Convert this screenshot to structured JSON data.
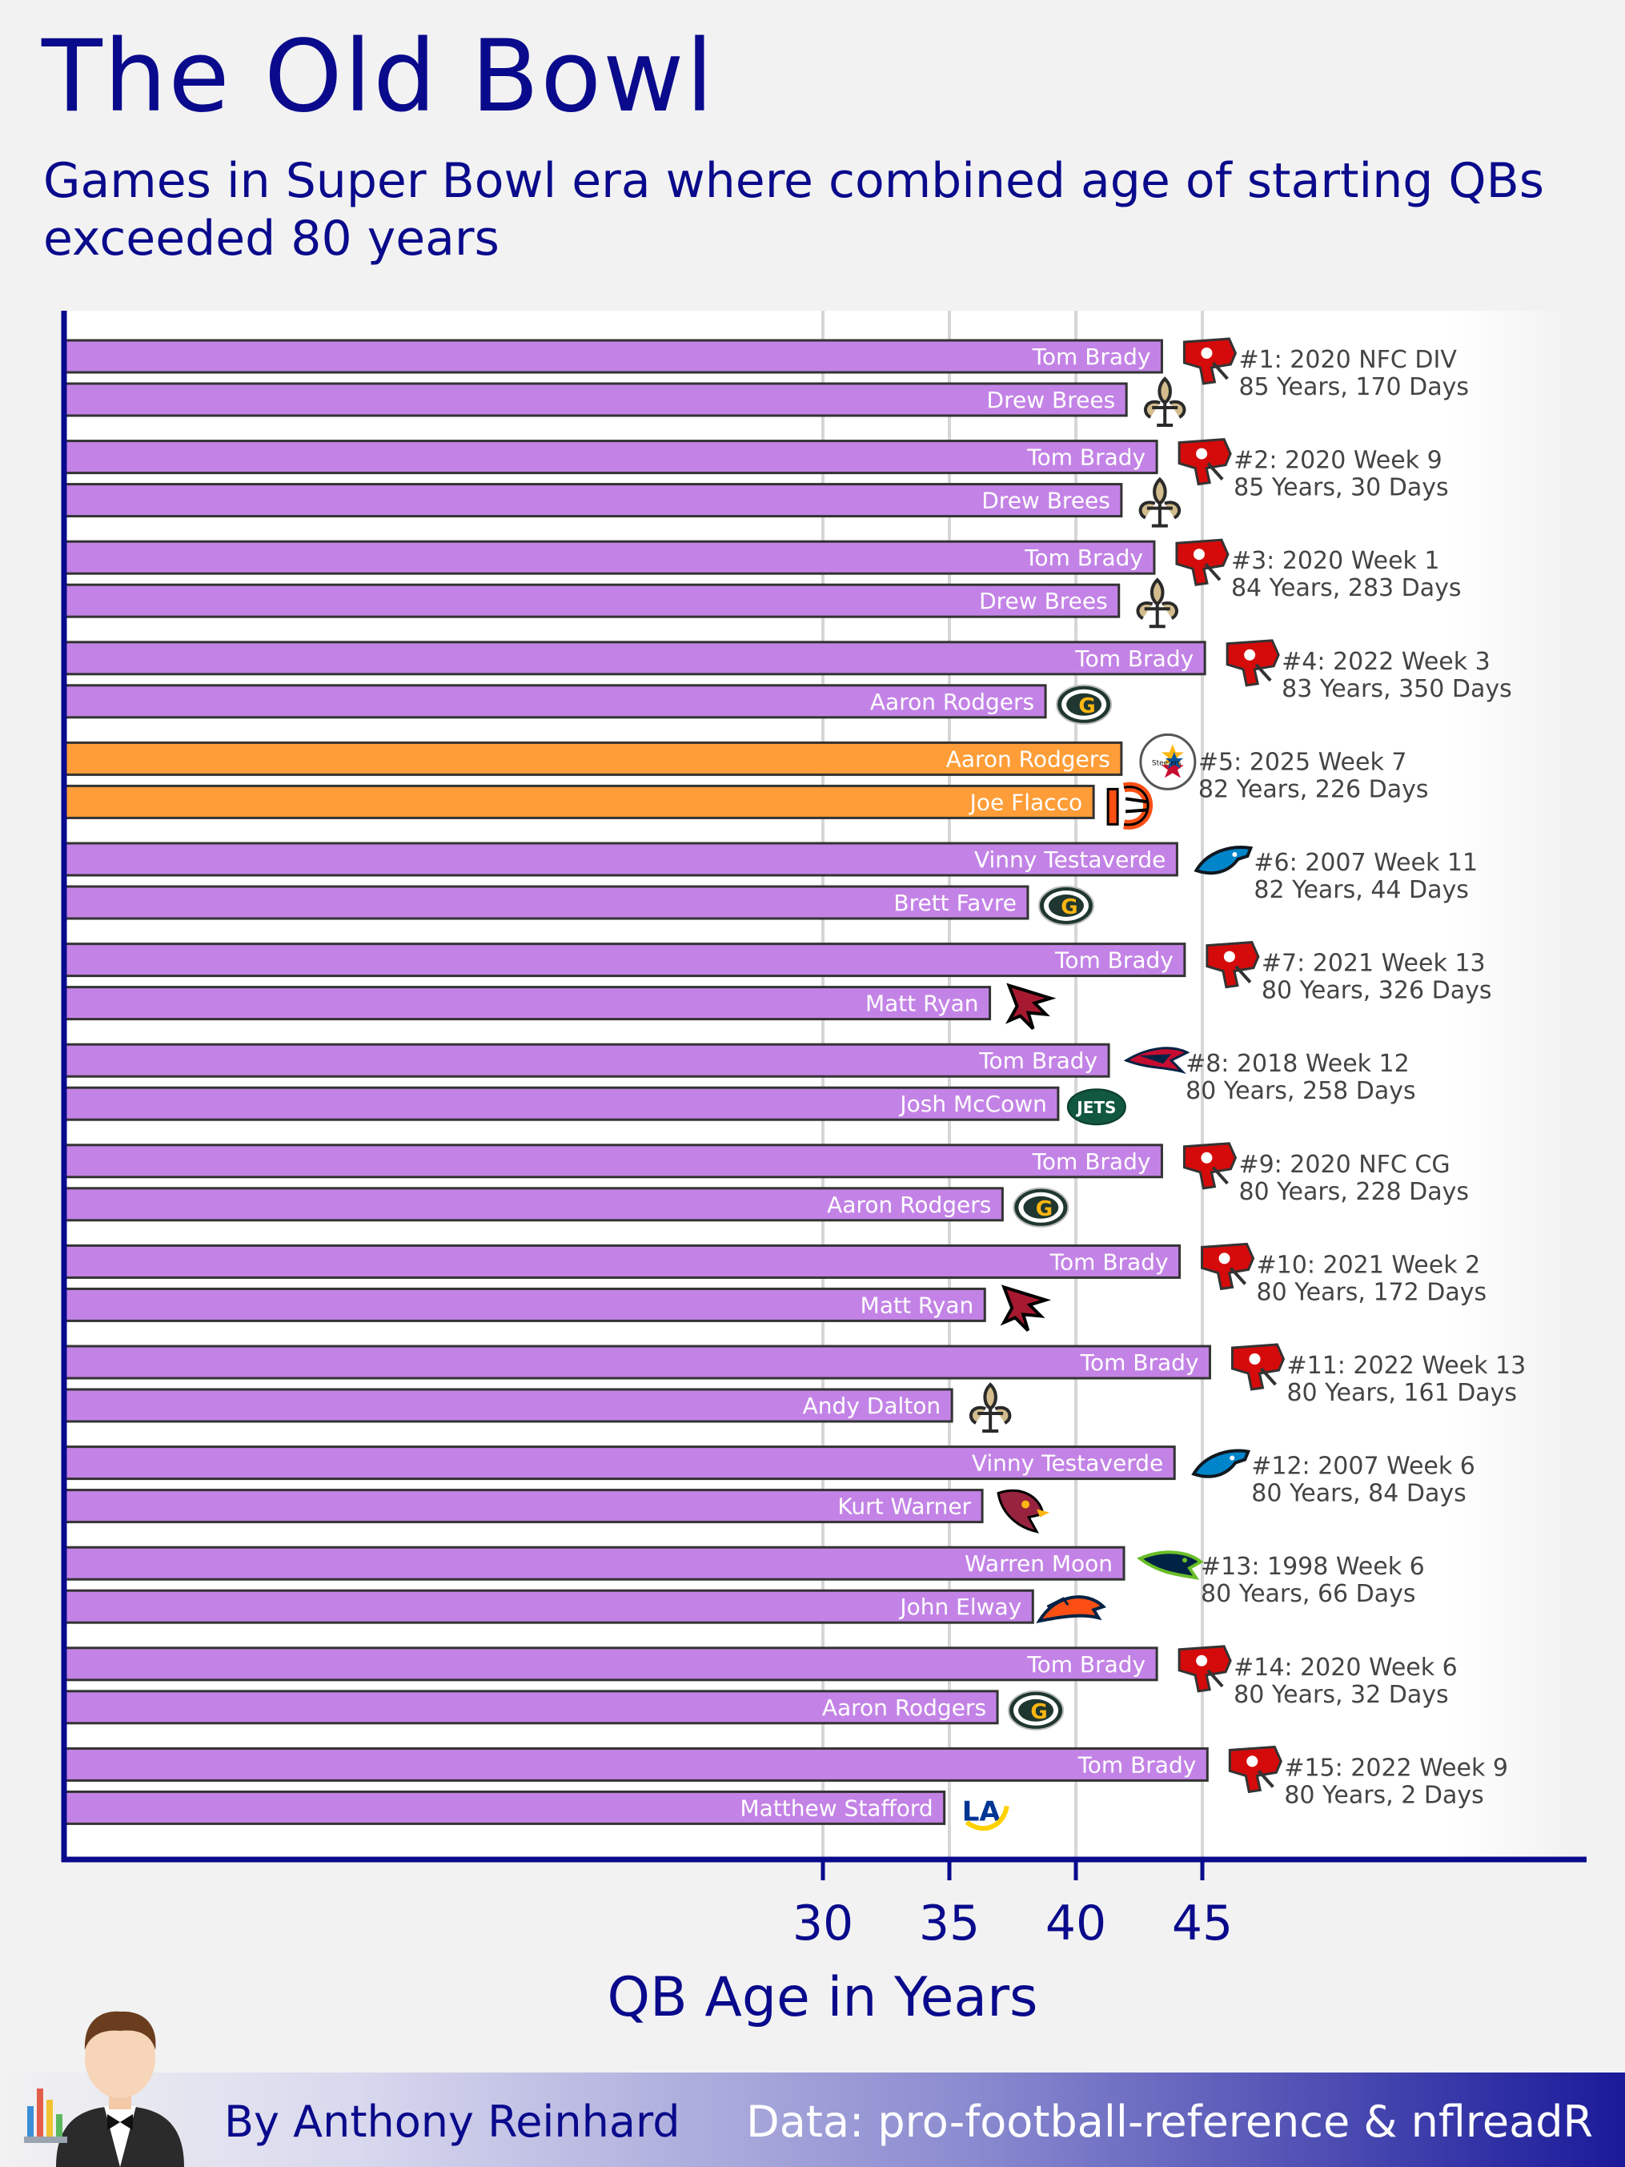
{
  "header": {
    "title": "The Old Bowl",
    "subtitle": "Games in Super Bowl era where combined age of starting QBs exceeded 80 years"
  },
  "footer": {
    "byline": "By Anthony Reinhard",
    "source": "Data: pro-football-reference & nflreadR"
  },
  "colors": {
    "title": "#0a0a8c",
    "bar_default": "#c383e6",
    "bar_highlight": "#ff9d38",
    "bar_border": "#333333",
    "axis": "#0a0a8c"
  },
  "chart_data": {
    "type": "bar",
    "orientation": "horizontal",
    "xlabel": "QB Age in Years",
    "xticks": [
      30,
      35,
      40,
      45
    ],
    "xlim": [
      0,
      60
    ],
    "grid": true,
    "games": [
      {
        "rank_label": "#1: 2020 NFC DIV",
        "combined": "85 Years, 170 Days",
        "highlight": false,
        "qbs": [
          {
            "name": "Tom Brady",
            "age": 43.4,
            "team": "buccaneers-logo"
          },
          {
            "name": "Drew Brees",
            "age": 42.0,
            "team": "saints-logo"
          }
        ]
      },
      {
        "rank_label": "#2: 2020 Week 9",
        "combined": "85 Years, 30 Days",
        "highlight": false,
        "qbs": [
          {
            "name": "Tom Brady",
            "age": 43.2,
            "team": "buccaneers-logo"
          },
          {
            "name": "Drew Brees",
            "age": 41.8,
            "team": "saints-logo"
          }
        ]
      },
      {
        "rank_label": "#3: 2020 Week 1",
        "combined": "84 Years, 283 Days",
        "highlight": false,
        "qbs": [
          {
            "name": "Tom Brady",
            "age": 43.1,
            "team": "buccaneers-logo"
          },
          {
            "name": "Drew Brees",
            "age": 41.7,
            "team": "saints-logo"
          }
        ]
      },
      {
        "rank_label": "#4: 2022 Week 3",
        "combined": "83 Years, 350 Days",
        "highlight": false,
        "qbs": [
          {
            "name": "Tom Brady",
            "age": 45.1,
            "team": "buccaneers-logo"
          },
          {
            "name": "Aaron Rodgers",
            "age": 38.8,
            "team": "packers-logo"
          }
        ]
      },
      {
        "rank_label": "#5: 2025 Week 7",
        "combined": "82 Years, 226 Days",
        "highlight": true,
        "qbs": [
          {
            "name": "Aaron Rodgers",
            "age": 41.8,
            "team": "steelers-logo"
          },
          {
            "name": "Joe Flacco",
            "age": 40.7,
            "team": "bengals-logo"
          }
        ]
      },
      {
        "rank_label": "#6: 2007 Week 11",
        "combined": "82 Years, 44 Days",
        "highlight": false,
        "qbs": [
          {
            "name": "Vinny Testaverde",
            "age": 44.0,
            "team": "panthers-logo"
          },
          {
            "name": "Brett Favre",
            "age": 38.1,
            "team": "packers-logo"
          }
        ]
      },
      {
        "rank_label": "#7: 2021 Week 13",
        "combined": "80 Years, 326 Days",
        "highlight": false,
        "qbs": [
          {
            "name": "Tom Brady",
            "age": 44.3,
            "team": "buccaneers-logo"
          },
          {
            "name": "Matt Ryan",
            "age": 36.6,
            "team": "falcons-logo"
          }
        ]
      },
      {
        "rank_label": "#8: 2018 Week 12",
        "combined": "80 Years, 258 Days",
        "highlight": false,
        "qbs": [
          {
            "name": "Tom Brady",
            "age": 41.3,
            "team": "patriots-logo"
          },
          {
            "name": "Josh McCown",
            "age": 39.3,
            "team": "jets-logo"
          }
        ]
      },
      {
        "rank_label": "#9: 2020 NFC CG",
        "combined": "80 Years, 228 Days",
        "highlight": false,
        "qbs": [
          {
            "name": "Tom Brady",
            "age": 43.4,
            "team": "buccaneers-logo"
          },
          {
            "name": "Aaron Rodgers",
            "age": 37.1,
            "team": "packers-logo"
          }
        ]
      },
      {
        "rank_label": "#10: 2021 Week 2",
        "combined": "80 Years, 172 Days",
        "highlight": false,
        "qbs": [
          {
            "name": "Tom Brady",
            "age": 44.1,
            "team": "buccaneers-logo"
          },
          {
            "name": "Matt Ryan",
            "age": 36.4,
            "team": "falcons-logo"
          }
        ]
      },
      {
        "rank_label": "#11: 2022 Week 13",
        "combined": "80 Years, 161 Days",
        "highlight": false,
        "qbs": [
          {
            "name": "Tom Brady",
            "age": 45.3,
            "team": "buccaneers-logo"
          },
          {
            "name": "Andy Dalton",
            "age": 35.1,
            "team": "saints-logo"
          }
        ]
      },
      {
        "rank_label": "#12: 2007 Week 6",
        "combined": "80 Years, 84 Days",
        "highlight": false,
        "qbs": [
          {
            "name": "Vinny Testaverde",
            "age": 43.9,
            "team": "panthers-logo"
          },
          {
            "name": "Kurt Warner",
            "age": 36.3,
            "team": "cardinals-logo"
          }
        ]
      },
      {
        "rank_label": "#13: 1998 Week 6",
        "combined": "80 Years, 66 Days",
        "highlight": false,
        "qbs": [
          {
            "name": "Warren Moon",
            "age": 41.9,
            "team": "seahawks-logo"
          },
          {
            "name": "John Elway",
            "age": 38.3,
            "team": "broncos-logo"
          }
        ]
      },
      {
        "rank_label": "#14: 2020 Week 6",
        "combined": "80 Years, 32 Days",
        "highlight": false,
        "qbs": [
          {
            "name": "Tom Brady",
            "age": 43.2,
            "team": "buccaneers-logo"
          },
          {
            "name": "Aaron Rodgers",
            "age": 36.9,
            "team": "packers-logo"
          }
        ]
      },
      {
        "rank_label": "#15: 2022 Week 9",
        "combined": "80 Years, 2 Days",
        "highlight": false,
        "qbs": [
          {
            "name": "Tom Brady",
            "age": 45.2,
            "team": "buccaneers-logo"
          },
          {
            "name": "Matthew Stafford",
            "age": 34.8,
            "team": "rams-logo"
          }
        ]
      }
    ]
  }
}
